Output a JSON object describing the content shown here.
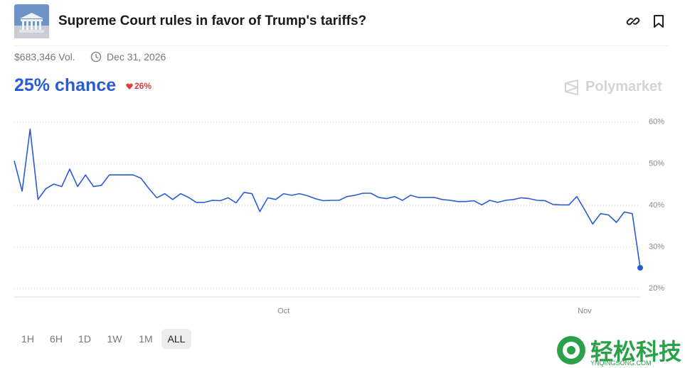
{
  "header": {
    "title": "Supreme Court rules in favor of Trump's tariffs?",
    "volume": "$683,346 Vol.",
    "end_date": "Dec 31, 2026",
    "chance": "25% chance",
    "change": "26%",
    "brand": "Polymarket"
  },
  "ranges": [
    "1H",
    "6H",
    "1D",
    "1W",
    "1M",
    "ALL"
  ],
  "watermark": {
    "name": "轻松科技",
    "site": "YNQINGSONG.COM"
  },
  "chart_data": {
    "type": "line",
    "color": "#2a5bd7",
    "grid": true,
    "categories": [
      null,
      null,
      null,
      null,
      null,
      null,
      null,
      null,
      null,
      null,
      null,
      null,
      null,
      null,
      null,
      null,
      null,
      null,
      null,
      null,
      null,
      null,
      null,
      null,
      null,
      null,
      null,
      null,
      null,
      null,
      null,
      null,
      null,
      null,
      "Oct",
      null,
      null,
      null,
      null,
      null,
      null,
      null,
      null,
      null,
      null,
      null,
      null,
      null,
      null,
      null,
      null,
      null,
      null,
      null,
      null,
      null,
      null,
      null,
      null,
      null,
      null,
      null,
      null,
      null,
      null,
      null,
      null,
      null,
      null,
      null,
      null,
      null,
      "Nov",
      null,
      null,
      null,
      null,
      null,
      null,
      null
    ],
    "values": [
      50.7,
      43.4,
      58.3,
      41.4,
      44,
      45.1,
      44.5,
      48.7,
      44.5,
      47.3,
      44.5,
      44.8,
      47.3,
      47.3,
      47.3,
      47.3,
      46.5,
      44,
      41.8,
      42.8,
      41.4,
      42.8,
      41.9,
      40.7,
      40.7,
      41.2,
      41.1,
      41.8,
      40.6,
      43.1,
      42.8,
      38.5,
      41.8,
      41.4,
      42.8,
      42.4,
      42.8,
      42.3,
      41.6,
      41.1,
      41.2,
      41.2,
      42.1,
      42.4,
      42.9,
      42.9,
      41.9,
      41.6,
      42.1,
      41.2,
      42.4,
      41.9,
      41.9,
      41.9,
      41.4,
      41.2,
      40.9,
      40.9,
      41.1,
      40.1,
      41.2,
      40.7,
      41.2,
      41.4,
      41.8,
      41.6,
      41.2,
      41.1,
      40.2,
      40.1,
      40.1,
      42.1,
      38.9,
      35.5,
      38,
      37.7,
      35.9,
      38.4,
      38,
      25
    ],
    "ylim": [
      18,
      62
    ],
    "yticks": [
      {
        "value": 20,
        "label": "20%"
      },
      {
        "value": 30,
        "label": "30%"
      },
      {
        "value": 40,
        "label": "40%"
      },
      {
        "value": 50,
        "label": "50%"
      },
      {
        "value": 60,
        "label": "60%"
      }
    ]
  }
}
